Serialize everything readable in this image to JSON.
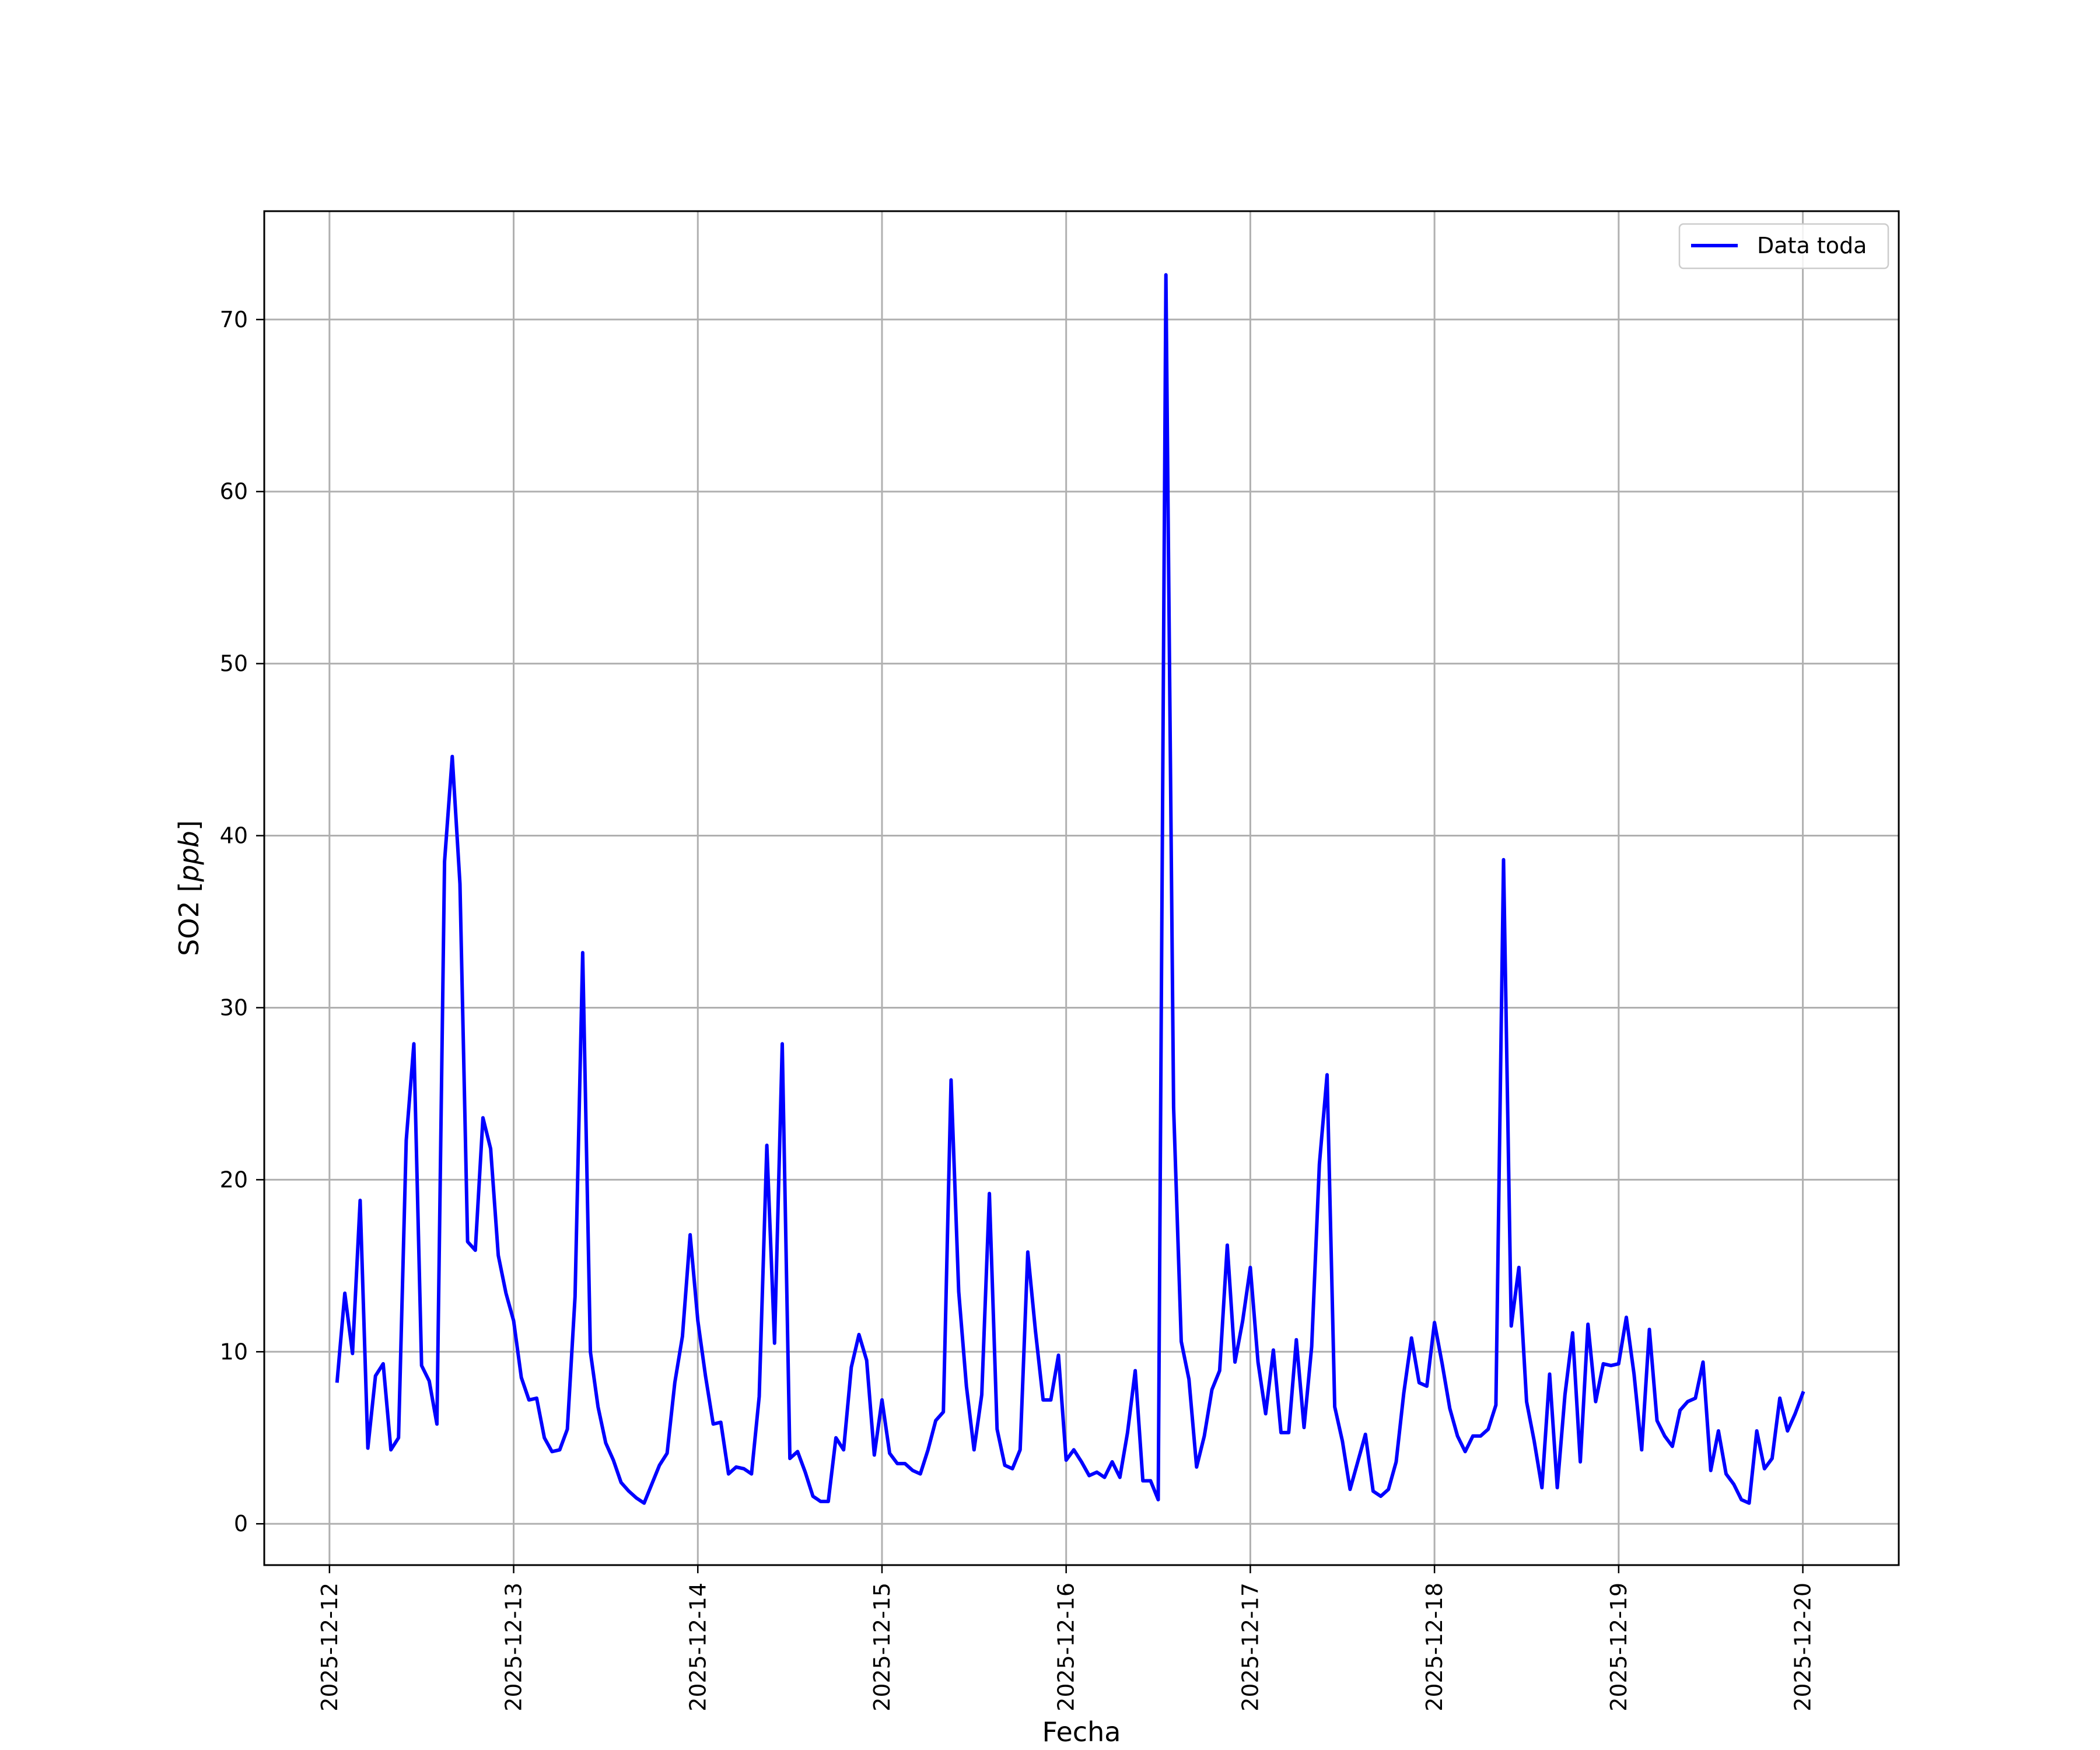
{
  "chart_data": {
    "type": "line",
    "xlabel": "Fecha",
    "ylabel": "SO2 [ppb]",
    "ylabel_prefix": "SO2 [",
    "ylabel_unit": "ppb",
    "ylabel_suffix": "]",
    "x_ticks": [
      "2025-12-12",
      "2025-12-13",
      "2025-12-14",
      "2025-12-15",
      "2025-12-16",
      "2025-12-17",
      "2025-12-18",
      "2025-12-19",
      "2025-12-20"
    ],
    "y_ticks": [
      "0",
      "10",
      "20",
      "30",
      "40",
      "50",
      "60",
      "70"
    ],
    "xlim": [
      "2025-12-11 15:30",
      "2025-12-20 12:30"
    ],
    "ylim": [
      -2.4,
      76.3
    ],
    "grid": true,
    "legend_position": "top-right",
    "colors": {
      "series": "#0000ff",
      "grid": "#b0b0b0",
      "axes": "#000000"
    },
    "series": [
      {
        "name": "Data toda",
        "x": [
          "2025-12-12 01:00",
          "2025-12-12 02:00",
          "2025-12-12 03:00",
          "2025-12-12 04:00",
          "2025-12-12 05:00",
          "2025-12-12 06:00",
          "2025-12-12 07:00",
          "2025-12-12 08:00",
          "2025-12-12 09:00",
          "2025-12-12 10:00",
          "2025-12-12 11:00",
          "2025-12-12 12:00",
          "2025-12-12 13:00",
          "2025-12-12 14:00",
          "2025-12-12 15:00",
          "2025-12-12 16:00",
          "2025-12-12 17:00",
          "2025-12-12 18:00",
          "2025-12-12 19:00",
          "2025-12-12 20:00",
          "2025-12-12 21:00",
          "2025-12-12 22:00",
          "2025-12-12 23:00",
          "2025-12-13 00:00",
          "2025-12-13 01:00",
          "2025-12-13 02:00",
          "2025-12-13 03:00",
          "2025-12-13 04:00",
          "2025-12-13 05:00",
          "2025-12-13 06:00",
          "2025-12-13 07:00",
          "2025-12-13 08:00",
          "2025-12-13 09:00",
          "2025-12-13 10:00",
          "2025-12-13 11:00",
          "2025-12-13 12:00",
          "2025-12-13 13:00",
          "2025-12-13 14:00",
          "2025-12-13 15:00",
          "2025-12-13 16:00",
          "2025-12-13 17:00",
          "2025-12-13 18:00",
          "2025-12-13 19:00",
          "2025-12-13 20:00",
          "2025-12-13 21:00",
          "2025-12-13 22:00",
          "2025-12-13 23:00",
          "2025-12-14 00:00",
          "2025-12-14 01:00",
          "2025-12-14 02:00",
          "2025-12-14 03:00",
          "2025-12-14 04:00",
          "2025-12-14 05:00",
          "2025-12-14 06:00",
          "2025-12-14 07:00",
          "2025-12-14 08:00",
          "2025-12-14 09:00",
          "2025-12-14 10:00",
          "2025-12-14 11:00",
          "2025-12-14 12:00",
          "2025-12-14 13:00",
          "2025-12-14 14:00",
          "2025-12-14 15:00",
          "2025-12-14 16:00",
          "2025-12-14 17:00",
          "2025-12-14 18:00",
          "2025-12-14 19:00",
          "2025-12-14 20:00",
          "2025-12-14 21:00",
          "2025-12-14 22:00",
          "2025-12-14 23:00",
          "2025-12-15 00:00",
          "2025-12-15 01:00",
          "2025-12-15 02:00",
          "2025-12-15 03:00",
          "2025-12-15 04:00",
          "2025-12-15 05:00",
          "2025-12-15 06:00",
          "2025-12-15 07:00",
          "2025-12-15 08:00",
          "2025-12-15 09:00",
          "2025-12-15 10:00",
          "2025-12-15 11:00",
          "2025-12-15 12:00",
          "2025-12-15 13:00",
          "2025-12-15 14:00",
          "2025-12-15 15:00",
          "2025-12-15 16:00",
          "2025-12-15 17:00",
          "2025-12-15 18:00",
          "2025-12-15 19:00",
          "2025-12-15 20:00",
          "2025-12-15 21:00",
          "2025-12-15 22:00",
          "2025-12-15 23:00",
          "2025-12-16 00:00",
          "2025-12-16 01:00",
          "2025-12-16 02:00",
          "2025-12-16 03:00",
          "2025-12-16 04:00",
          "2025-12-16 05:00",
          "2025-12-16 06:00",
          "2025-12-16 07:00",
          "2025-12-16 08:00",
          "2025-12-16 09:00",
          "2025-12-16 10:00",
          "2025-12-16 11:00",
          "2025-12-16 12:00",
          "2025-12-16 13:00",
          "2025-12-16 14:00",
          "2025-12-16 15:00",
          "2025-12-16 16:00",
          "2025-12-16 17:00",
          "2025-12-16 18:00",
          "2025-12-16 19:00",
          "2025-12-16 20:00",
          "2025-12-16 21:00",
          "2025-12-16 22:00",
          "2025-12-16 23:00",
          "2025-12-17 00:00",
          "2025-12-17 01:00",
          "2025-12-17 02:00",
          "2025-12-17 03:00",
          "2025-12-17 04:00",
          "2025-12-17 05:00",
          "2025-12-17 06:00",
          "2025-12-17 07:00",
          "2025-12-17 08:00",
          "2025-12-17 09:00",
          "2025-12-17 10:00",
          "2025-12-17 11:00",
          "2025-12-17 12:00",
          "2025-12-17 13:00",
          "2025-12-17 14:00",
          "2025-12-17 15:00",
          "2025-12-17 16:00",
          "2025-12-17 17:00",
          "2025-12-17 18:00",
          "2025-12-17 19:00",
          "2025-12-17 20:00",
          "2025-12-17 21:00",
          "2025-12-17 22:00",
          "2025-12-17 23:00",
          "2025-12-18 00:00",
          "2025-12-18 01:00",
          "2025-12-18 02:00",
          "2025-12-18 03:00",
          "2025-12-18 04:00",
          "2025-12-18 05:00",
          "2025-12-18 06:00",
          "2025-12-18 07:00",
          "2025-12-18 08:00",
          "2025-12-18 09:00",
          "2025-12-18 10:00",
          "2025-12-18 11:00",
          "2025-12-18 12:00",
          "2025-12-18 13:00",
          "2025-12-18 14:00",
          "2025-12-18 15:00",
          "2025-12-18 16:00",
          "2025-12-18 17:00",
          "2025-12-18 18:00",
          "2025-12-18 19:00",
          "2025-12-18 20:00",
          "2025-12-18 21:00",
          "2025-12-18 22:00",
          "2025-12-18 23:00",
          "2025-12-19 00:00",
          "2025-12-19 01:00",
          "2025-12-19 02:00",
          "2025-12-19 03:00",
          "2025-12-19 04:00",
          "2025-12-19 05:00",
          "2025-12-19 06:00",
          "2025-12-19 07:00",
          "2025-12-19 08:00",
          "2025-12-19 09:00",
          "2025-12-19 10:00",
          "2025-12-19 11:00",
          "2025-12-19 12:00",
          "2025-12-19 13:00",
          "2025-12-19 14:00",
          "2025-12-19 15:00",
          "2025-12-19 16:00",
          "2025-12-19 17:00",
          "2025-12-19 18:00",
          "2025-12-19 19:00",
          "2025-12-19 20:00",
          "2025-12-19 21:00",
          "2025-12-19 22:00",
          "2025-12-19 23:00",
          "2025-12-20 00:00"
        ],
        "values": [
          8.3,
          13.4,
          9.9,
          18.8,
          4.4,
          8.6,
          9.3,
          4.3,
          5.0,
          22.3,
          27.9,
          9.2,
          8.3,
          5.8,
          38.5,
          44.6,
          37.2,
          16.4,
          15.9,
          23.6,
          21.8,
          15.6,
          13.4,
          11.8,
          8.5,
          7.2,
          7.3,
          5.0,
          4.2,
          4.3,
          5.5,
          13.2,
          33.2,
          10.0,
          6.8,
          4.7,
          3.7,
          2.4,
          1.9,
          1.5,
          1.2,
          2.3,
          3.4,
          4.1,
          8.2,
          10.9,
          16.8,
          11.8,
          8.6,
          5.8,
          5.9,
          2.9,
          3.3,
          3.2,
          2.9,
          7.4,
          22.0,
          10.5,
          27.9,
          3.8,
          4.2,
          3.0,
          1.6,
          1.3,
          1.3,
          5.0,
          4.3,
          9.1,
          11.0,
          9.5,
          4.0,
          7.2,
          4.1,
          3.5,
          3.5,
          3.1,
          2.9,
          4.3,
          6.0,
          6.5,
          25.8,
          13.5,
          8.0,
          4.3,
          7.5,
          19.2,
          5.5,
          3.4,
          3.2,
          4.3,
          15.8,
          11.2,
          7.2,
          7.2,
          9.8,
          3.7,
          4.3,
          3.6,
          2.8,
          3.0,
          2.7,
          3.6,
          2.7,
          5.3,
          8.9,
          2.5,
          2.5,
          1.4,
          72.6,
          24.2,
          10.6,
          8.4,
          3.3,
          5.1,
          7.8,
          8.9,
          16.2,
          9.4,
          11.8,
          14.9,
          9.4,
          6.4,
          10.1,
          5.3,
          5.3,
          10.7,
          5.6,
          10.3,
          20.9,
          26.1,
          6.8,
          4.8,
          2.0,
          3.6,
          5.2,
          1.9,
          1.6,
          2.0,
          3.6,
          7.6,
          10.8,
          8.2,
          8.0,
          11.7,
          9.3,
          6.7,
          5.1,
          4.2,
          5.1,
          5.1,
          5.5,
          6.9,
          38.6,
          11.5,
          14.9,
          7.1,
          4.8,
          2.1,
          8.7,
          2.1,
          7.5,
          11.1,
          3.6,
          11.6,
          7.1,
          9.3,
          9.2,
          9.3,
          12.0,
          8.7,
          4.3,
          11.3,
          6.0,
          5.1,
          4.5,
          6.6,
          7.1,
          7.3,
          9.4,
          3.1,
          5.4,
          2.9,
          2.3,
          1.4,
          1.2,
          5.4,
          3.2,
          3.8,
          7.3,
          5.4,
          6.4,
          7.6
        ]
      }
    ]
  }
}
